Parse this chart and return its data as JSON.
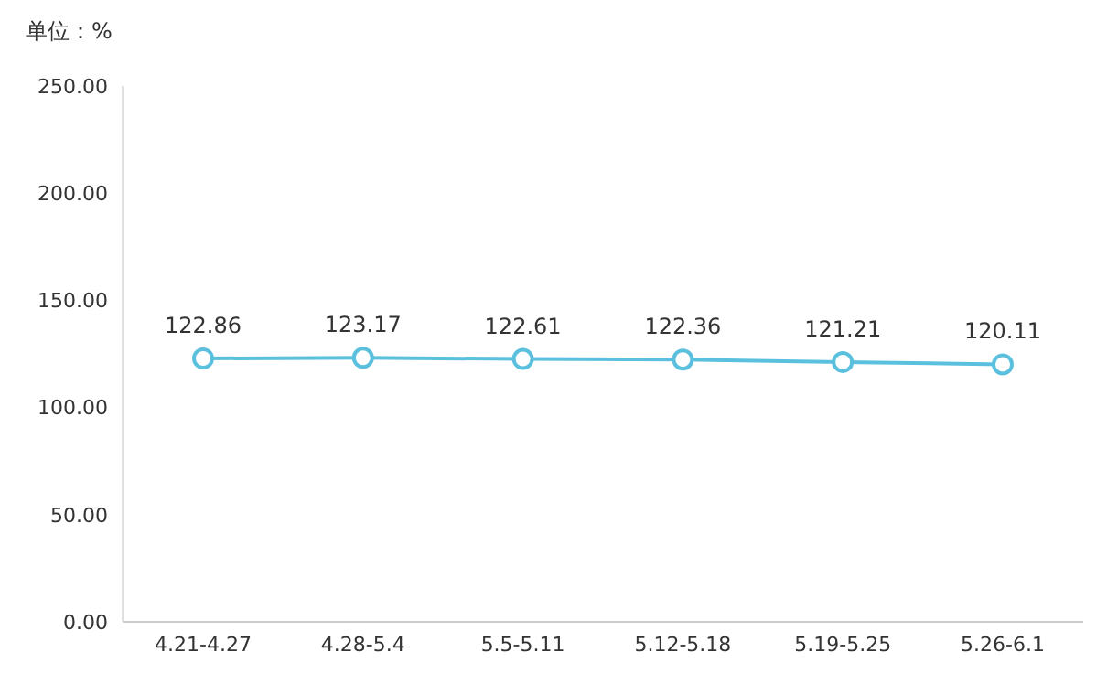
{
  "chart_data": {
    "type": "line",
    "ylabel": "单位：%",
    "categories": [
      "4.21-4.27",
      "4.28-5.4",
      "5.5-5.11",
      "5.12-5.18",
      "5.19-5.25",
      "5.26-6.1"
    ],
    "series": [
      {
        "color": "#5bc0de",
        "values": [
          122.86,
          123.17,
          122.61,
          122.36,
          121.21,
          120.11
        ]
      }
    ],
    "ylim": [
      0,
      250
    ],
    "yticks": [
      {
        "value": 0,
        "label": "0.00"
      },
      {
        "value": 50,
        "label": "50.00"
      },
      {
        "value": 100,
        "label": "100.00"
      },
      {
        "value": 150,
        "label": "150.00"
      },
      {
        "value": 200,
        "label": "200.00"
      },
      {
        "value": 250,
        "label": "250.00"
      }
    ],
    "grid": false,
    "legend": false,
    "marker": "circle",
    "line_style": "solid",
    "data_labels": true
  }
}
